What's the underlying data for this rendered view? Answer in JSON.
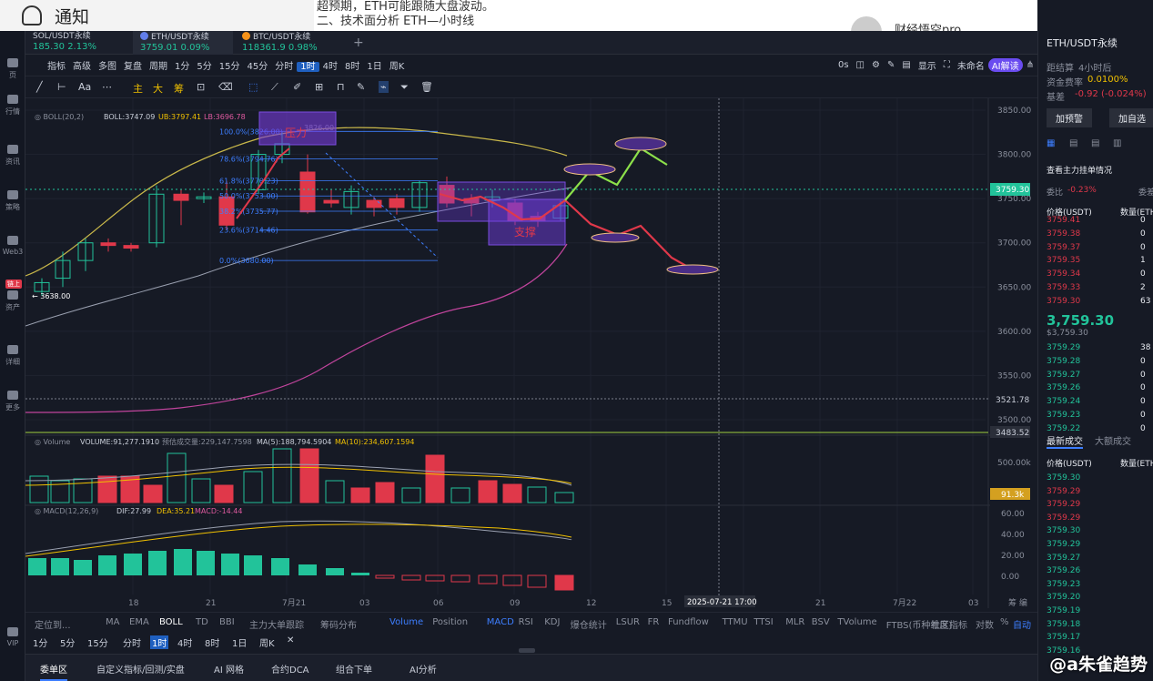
{
  "notice": {
    "title": "通知"
  },
  "article": {
    "line1": "超预期，ETH可能跟随大盘波动。",
    "line2": "二、技术面分析 ETH—小时线"
  },
  "author": {
    "name": "财经悟空pro"
  },
  "tabs": [
    {
      "name": "SOL/USDT永续",
      "price": "185.30",
      "change": "2.13%"
    },
    {
      "name": "ETH/USDT永续",
      "price": "3759.01",
      "change": "0.09%"
    },
    {
      "name": "BTC/USDT永续",
      "price": "118361.9",
      "change": "0.98%"
    }
  ],
  "toolbar": {
    "indicators": "指标",
    "advanced": "高级",
    "multi": "多图",
    "review": "复盘",
    "period": "周期",
    "intervals": [
      "1分",
      "5分",
      "15分",
      "45分",
      "分时",
      "1时",
      "4时",
      "8时",
      "1日",
      "周K"
    ],
    "active_interval": "1时",
    "os": "0s",
    "display": "显示",
    "unnamed": "未命名",
    "ai": "AI解读"
  },
  "drawbar": {
    "main": "主",
    "big": "大",
    "chips": "筹"
  },
  "sidebar": {
    "items": [
      "页",
      "行情",
      "资讯",
      "策略",
      "Web3",
      "资产",
      "详细",
      "更多",
      "VIP"
    ],
    "badge": "链上"
  },
  "chart": {
    "boll_label": "BOLL(20,2)",
    "boll_val": "BOLL:3747.09",
    "ub": "UB:3797.41",
    "lb": "LB:3696.78",
    "fib": [
      "100.0%(3826.00)",
      "78.6%(3794.76)",
      "61.8%(3770.23)",
      "50.0%(3753.00)",
      "38.2%(3735.77)",
      "23.6%(3714.46)",
      "0.0%(3680.00)"
    ],
    "fib_extra": "3826.00",
    "low_label": "3638.00",
    "pressure": "压力",
    "support": "支撑",
    "price_axis": [
      "3850.00",
      "3800.00",
      "3750.00",
      "3700.00",
      "3650.00",
      "3600.00",
      "3550.00",
      "3500.00"
    ],
    "last_price": "3759.30",
    "line_3521": "3521.78",
    "line_3483": "3483.52",
    "vol_label": "Volume",
    "vol_val": "VOLUME:91,277.1910",
    "vol_pred": "预估成交量:229,147.7598",
    "ma5": "MA(5):188,794.5904",
    "ma10": "MA(10):234,607.1594",
    "vol_axis": [
      "500.00k"
    ],
    "vol_last": "91.3k",
    "macd_label": "MACD(12,26,9)",
    "dif": "DIF:27.99",
    "dea": "DEA:35.21",
    "macd": "MACD:-14.44",
    "macd_axis": [
      "60.00",
      "40.00",
      "20.00",
      "0.00"
    ],
    "time_axis": [
      "18",
      "21",
      "7月21",
      "03",
      "06",
      "09",
      "12",
      "15",
      "2025-07-21 17:00",
      "21",
      "7月22",
      "03"
    ],
    "time_right": "筹 编"
  },
  "indicator_tabs": {
    "left": [
      "定位到...",
      "MA",
      "EMA",
      "BOLL",
      "TD",
      "BBI",
      "主力大单跟踪",
      "筹码分布"
    ],
    "right": [
      "Volume",
      "Position",
      "MACD",
      "RSI",
      "KDJ",
      "爆仓统计",
      "LSUR",
      "FR",
      "Fundflow",
      "TTMU",
      "TTSI",
      "MLR",
      "BSV",
      "TVolume",
      "FTBS(币种维度)"
    ],
    "community": "社区指标",
    "log": "对数",
    "pct": "%",
    "auto": "自动"
  },
  "timeframes": [
    "1分",
    "5分",
    "15分",
    "分时",
    "1时",
    "4时",
    "8时",
    "1日",
    "周K"
  ],
  "bottom_tabs": [
    "委单区",
    "自定义指标/回测/实盘",
    "AI 网格",
    "合约DCA",
    "组合下单",
    "AI分析"
  ],
  "right_panel": {
    "symbol": "ETH/USDT永续",
    "settle_label": "距结算",
    "settle": "4小时后",
    "funding_label": "资金费率",
    "funding": "0.0100%",
    "basis_label": "基差",
    "basis": "-0.92 (-0.024%)",
    "btn1": "加预警",
    "btn2": "加自选",
    "main_orders": "查看主力挂单情况",
    "ratio_label": "委比",
    "ratio": "-0.23%",
    "ratio_right": "委差",
    "price_col": "价格(USDT)",
    "qty_col": "数量(ETH)",
    "asks": [
      [
        "3759.41",
        "0"
      ],
      [
        "3759.38",
        "0"
      ],
      [
        "3759.37",
        "0"
      ],
      [
        "3759.35",
        "1"
      ],
      [
        "3759.34",
        "0"
      ],
      [
        "3759.33",
        "2"
      ],
      [
        "3759.30",
        "63"
      ]
    ],
    "last": "3,759.30",
    "last_sub": "$3,759.30",
    "bids": [
      [
        "3759.29",
        "38"
      ],
      [
        "3759.28",
        "0"
      ],
      [
        "3759.27",
        "0"
      ],
      [
        "3759.26",
        "0"
      ],
      [
        "3759.24",
        "0"
      ],
      [
        "3759.23",
        "0"
      ],
      [
        "3759.22",
        "0"
      ]
    ],
    "trades_tab": "最新成交",
    "big_tab": "大额成交",
    "trades_price_col": "价格(USDT)",
    "trades_qty_col": "数量(ETH)",
    "trades": [
      [
        "3759.30",
        "g"
      ],
      [
        "3759.29",
        "r"
      ],
      [
        "3759.29",
        "r"
      ],
      [
        "3759.29",
        "r"
      ],
      [
        "3759.30",
        "g"
      ],
      [
        "3759.29",
        "g"
      ],
      [
        "3759.27",
        "g"
      ],
      [
        "3759.26",
        "g"
      ],
      [
        "3759.23",
        "g"
      ],
      [
        "3759.20",
        "g"
      ],
      [
        "3759.19",
        "g"
      ],
      [
        "3759.18",
        "g"
      ],
      [
        "3759.17",
        "g"
      ],
      [
        "3759.16",
        "g"
      ]
    ]
  },
  "watermark": "@a朱雀趋势"
}
